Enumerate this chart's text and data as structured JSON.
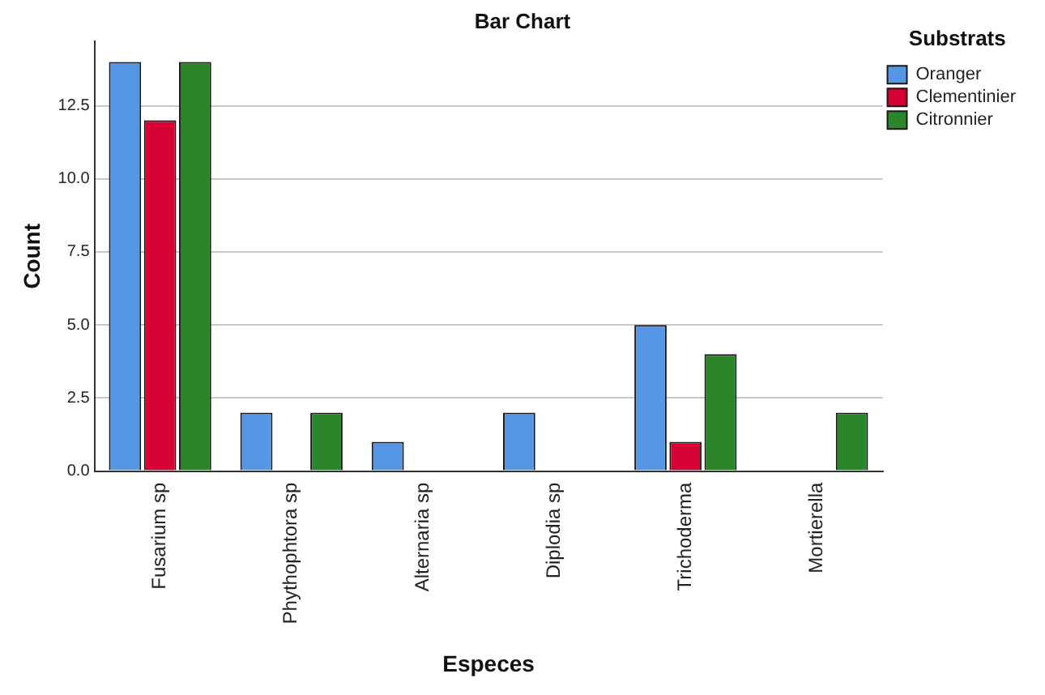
{
  "chart_data": {
    "type": "bar",
    "title": "Bar Chart",
    "xlabel": "Especes",
    "ylabel": "Count",
    "legend_title": "Substrats",
    "categories": [
      "Fusarium sp",
      "Phythophtora sp",
      "Alternaria sp",
      "Diplodia sp",
      "Trichoderma",
      "Mortierella"
    ],
    "series": [
      {
        "name": "Oranger",
        "color": "#5596e6",
        "values": [
          14,
          2,
          1,
          2,
          5,
          null
        ]
      },
      {
        "name": "Clementinier",
        "color": "#d60032",
        "values": [
          12,
          null,
          null,
          null,
          1,
          null
        ]
      },
      {
        "name": "Citronnier",
        "color": "#2a8629",
        "values": [
          14,
          2,
          null,
          null,
          4,
          2
        ]
      }
    ],
    "ylim": [
      0,
      14.7
    ],
    "yticks": [
      {
        "value": 0,
        "label": "0.0"
      },
      {
        "value": 2.5,
        "label": "2.5"
      },
      {
        "value": 5,
        "label": "5.0"
      },
      {
        "value": 7.5,
        "label": "7.5"
      },
      {
        "value": 10,
        "label": "10.0"
      },
      {
        "value": 12.5,
        "label": "12.5"
      }
    ],
    "grid": "y",
    "legend": "top right"
  }
}
